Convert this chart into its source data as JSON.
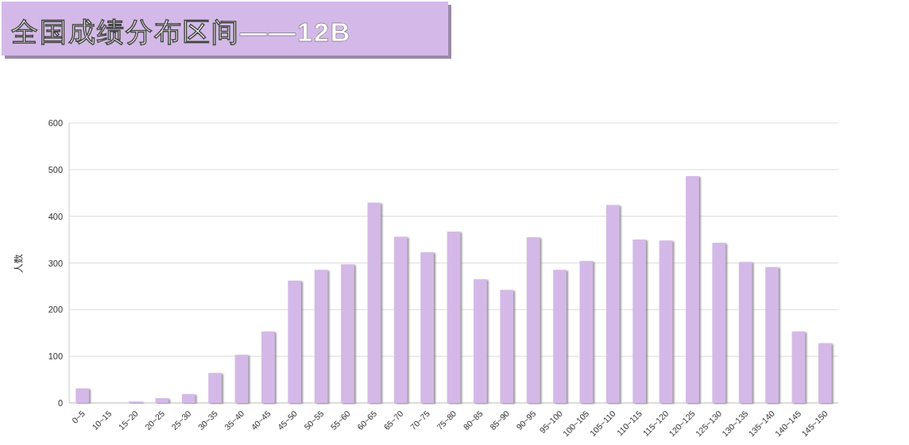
{
  "chart_data": {
    "type": "bar",
    "title": "全国成绩分布区间——12B",
    "ylabel": "人数",
    "categories": [
      "0~5",
      "10~15",
      "15~20",
      "20~25",
      "25~30",
      "30~35",
      "35~40",
      "40~45",
      "45~50",
      "50~55",
      "55~60",
      "60~65",
      "65~70",
      "70~75",
      "75~80",
      "80~85",
      "85~90",
      "90~95",
      "95~100",
      "100~105",
      "105~110",
      "110~115",
      "115~120",
      "120~125",
      "125~130",
      "130~135",
      "135~140",
      "140~145",
      "145~150"
    ],
    "values": [
      31,
      0,
      3,
      10,
      19,
      64,
      103,
      153,
      262,
      285,
      297,
      429,
      356,
      323,
      367,
      265,
      242,
      355,
      285,
      304,
      424,
      350,
      348,
      486,
      343,
      302,
      291,
      153,
      128
    ],
    "color": "#d4b9e8",
    "ylim": [
      0,
      600
    ],
    "yticks": [
      0,
      100,
      200,
      300,
      400,
      500,
      600
    ],
    "grid": "y"
  }
}
